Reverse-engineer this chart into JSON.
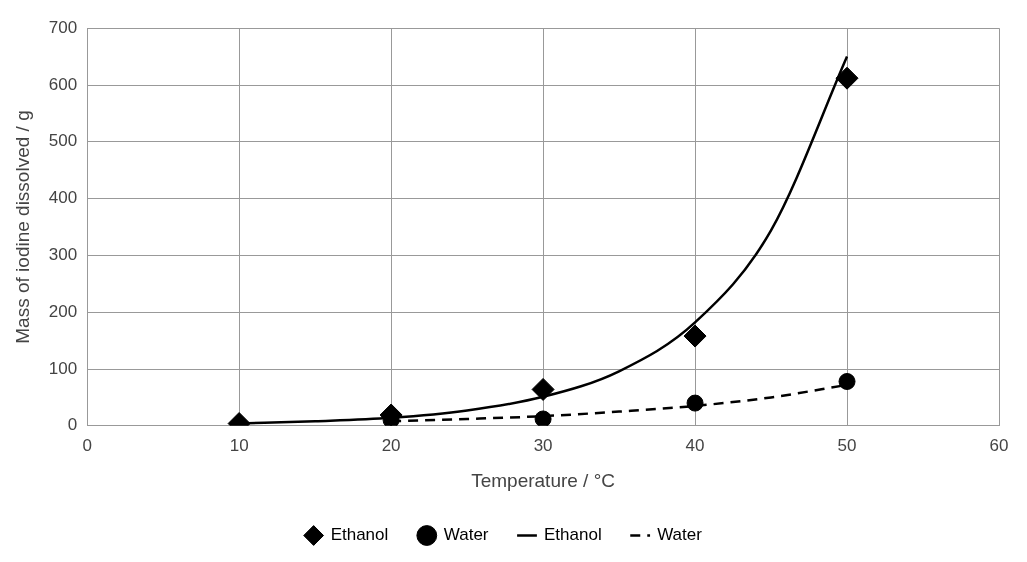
{
  "chart_data": {
    "type": "scatter",
    "xlabel": "Temperature / °C",
    "ylabel": "Mass of iodine dissolved / g",
    "xlim": [
      0,
      60
    ],
    "xticks": [
      0,
      10,
      20,
      30,
      40,
      50,
      60
    ],
    "ylim": [
      0,
      700
    ],
    "yticks": [
      0,
      100,
      200,
      300,
      400,
      500,
      600,
      700
    ],
    "grid": true,
    "legend": "bottom",
    "series": [
      {
        "name": "Ethanol",
        "marker": "diamond",
        "color": "#000000",
        "x": [
          10,
          20,
          30,
          40,
          50
        ],
        "values": [
          4,
          19,
          64,
          158,
          612
        ]
      },
      {
        "name": "Water",
        "marker": "circle",
        "color": "#000000",
        "x": [
          20,
          30,
          40,
          50
        ],
        "values": [
          10,
          12,
          40,
          78
        ]
      },
      {
        "name": "Ethanol",
        "type": "line",
        "line_style": "solid",
        "color": "#000000",
        "x": [
          10,
          15,
          20,
          25,
          30,
          35,
          40,
          45,
          50
        ],
        "values": [
          4,
          8,
          14,
          27,
          51,
          96,
          182,
          344,
          650
        ]
      },
      {
        "name": "Water",
        "type": "line",
        "line_style": "dashed",
        "color": "#000000",
        "x": [
          20,
          25,
          30,
          35,
          40,
          45,
          50
        ],
        "values": [
          8,
          12,
          17,
          25,
          35,
          50,
          72
        ]
      }
    ]
  }
}
